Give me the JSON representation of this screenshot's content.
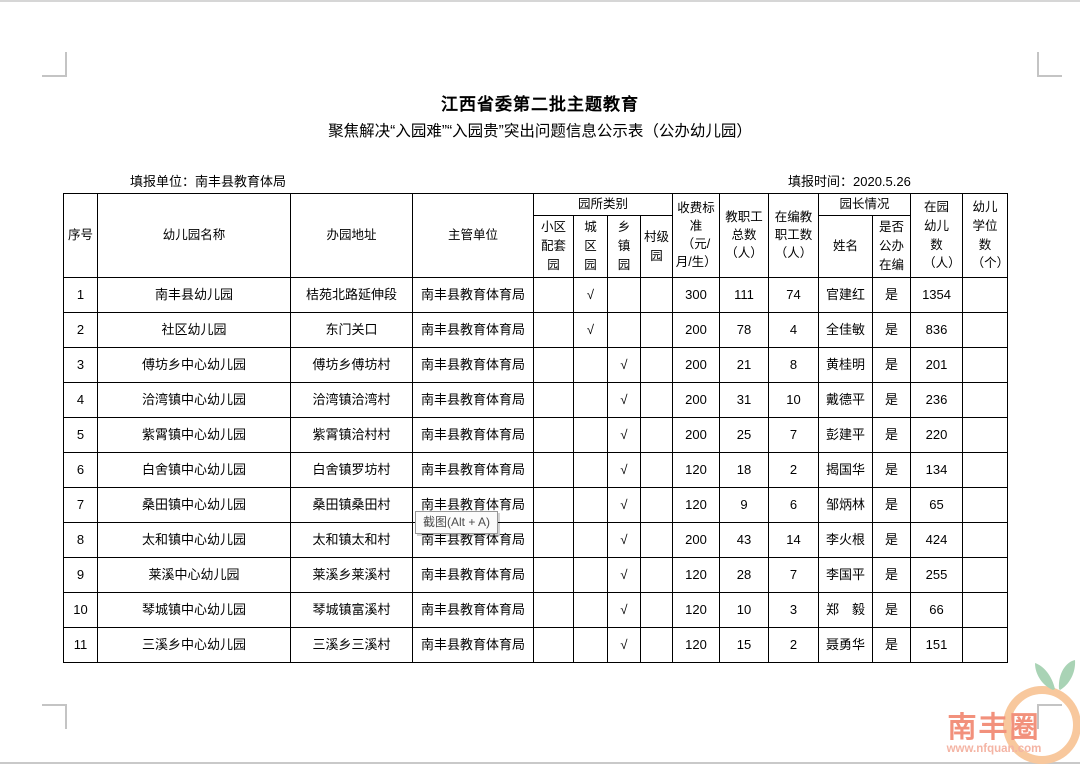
{
  "doc": {
    "title": "江西省委第二批主题教育",
    "subtitle": "聚焦解决“入园难”“入园贵”突出问题信息公示表（公办幼儿园）",
    "reporting_unit": {
      "label": "填报单位：",
      "value": "南丰县教育体局"
    },
    "reporting_time": {
      "label": "填报时间：",
      "value": "2020.5.26"
    }
  },
  "table": {
    "headers": {
      "seq": "序号",
      "name": "幼儿园名称",
      "address": "办园地址",
      "supervisor": "主管单位",
      "category_group": "园所类别",
      "category_community": "小区配套园",
      "category_urban": "城区园",
      "category_township": "乡镇园",
      "category_village": "村级园",
      "fee": "收费标准（元/月/生）",
      "staff_total": "教职工总数（人）",
      "staff_onpayroll": "在编教职工数（人）",
      "principal_group": "园长情况",
      "principal_name": "姓名",
      "principal_public": "是否公办在编",
      "children_count": "在园幼儿数（人）",
      "seat_count": "幼儿学位数（个）"
    },
    "checkmark": "√",
    "rows": [
      {
        "seq": "1",
        "name": "南丰县幼儿园",
        "address": "桔苑北路延伸段",
        "supervisor": "南丰县教育体育局",
        "community": "",
        "urban": "√",
        "township": "",
        "village": "",
        "fee": "300",
        "staff_total": "111",
        "staff_onpayroll": "74",
        "principal": "官建红",
        "public": "是",
        "children": "1354",
        "seats": ""
      },
      {
        "seq": "2",
        "name": "社区幼儿园",
        "address": "东门关口",
        "supervisor": "南丰县教育体育局",
        "community": "",
        "urban": "√",
        "township": "",
        "village": "",
        "fee": "200",
        "staff_total": "78",
        "staff_onpayroll": "4",
        "principal": "全佳敏",
        "public": "是",
        "children": "836",
        "seats": ""
      },
      {
        "seq": "3",
        "name": "傅坊乡中心幼儿园",
        "address": "傅坊乡傅坊村",
        "supervisor": "南丰县教育体育局",
        "community": "",
        "urban": "",
        "township": "√",
        "village": "",
        "fee": "200",
        "staff_total": "21",
        "staff_onpayroll": "8",
        "principal": "黄桂明",
        "public": "是",
        "children": "201",
        "seats": ""
      },
      {
        "seq": "4",
        "name": "洽湾镇中心幼儿园",
        "address": "洽湾镇洽湾村",
        "supervisor": "南丰县教育体育局",
        "community": "",
        "urban": "",
        "township": "√",
        "village": "",
        "fee": "200",
        "staff_total": "31",
        "staff_onpayroll": "10",
        "principal": "戴德平",
        "public": "是",
        "children": "236",
        "seats": ""
      },
      {
        "seq": "5",
        "name": "紫霄镇中心幼儿园",
        "address": "紫霄镇洽村村",
        "supervisor": "南丰县教育体育局",
        "community": "",
        "urban": "",
        "township": "√",
        "village": "",
        "fee": "200",
        "staff_total": "25",
        "staff_onpayroll": "7",
        "principal": "彭建平",
        "public": "是",
        "children": "220",
        "seats": ""
      },
      {
        "seq": "6",
        "name": "白舍镇中心幼儿园",
        "address": "白舍镇罗坊村",
        "supervisor": "南丰县教育体育局",
        "community": "",
        "urban": "",
        "township": "√",
        "village": "",
        "fee": "120",
        "staff_total": "18",
        "staff_onpayroll": "2",
        "principal": "揭国华",
        "public": "是",
        "children": "134",
        "seats": ""
      },
      {
        "seq": "7",
        "name": "桑田镇中心幼儿园",
        "address": "桑田镇桑田村",
        "supervisor": "南丰县教育体育局",
        "community": "",
        "urban": "",
        "township": "√",
        "village": "",
        "fee": "120",
        "staff_total": "9",
        "staff_onpayroll": "6",
        "principal": "邹炳林",
        "public": "是",
        "children": "65",
        "seats": ""
      },
      {
        "seq": "8",
        "name": "太和镇中心幼儿园",
        "address": "太和镇太和村",
        "supervisor": "南丰县教育体育局",
        "community": "",
        "urban": "",
        "township": "√",
        "village": "",
        "fee": "200",
        "staff_total": "43",
        "staff_onpayroll": "14",
        "principal": "李火根",
        "public": "是",
        "children": "424",
        "seats": ""
      },
      {
        "seq": "9",
        "name": "莱溪中心幼儿园",
        "address": "莱溪乡莱溪村",
        "supervisor": "南丰县教育体育局",
        "community": "",
        "urban": "",
        "township": "√",
        "village": "",
        "fee": "120",
        "staff_total": "28",
        "staff_onpayroll": "7",
        "principal": "李国平",
        "public": "是",
        "children": "255",
        "seats": ""
      },
      {
        "seq": "10",
        "name": "琴城镇中心幼儿园",
        "address": "琴城镇富溪村",
        "supervisor": "南丰县教育体育局",
        "community": "",
        "urban": "",
        "township": "√",
        "village": "",
        "fee": "120",
        "staff_total": "10",
        "staff_onpayroll": "3",
        "principal": "郑　毅",
        "public": "是",
        "children": "66",
        "seats": ""
      },
      {
        "seq": "11",
        "name": "三溪乡中心幼儿园",
        "address": "三溪乡三溪村",
        "supervisor": "南丰县教育体育局",
        "community": "",
        "urban": "",
        "township": "√",
        "village": "",
        "fee": "120",
        "staff_total": "15",
        "staff_onpayroll": "2",
        "principal": "聂勇华",
        "public": "是",
        "children": "151",
        "seats": ""
      }
    ]
  },
  "tooltip": {
    "label": "截图(Alt + A)"
  },
  "watermark": {
    "title": "南丰圈",
    "url": "www.nfquan.com",
    "colors": {
      "circle": "#f8c89d",
      "leaf": "#a9d3b5",
      "text": "#f2917c",
      "url_text": "#f4b4a4"
    }
  }
}
